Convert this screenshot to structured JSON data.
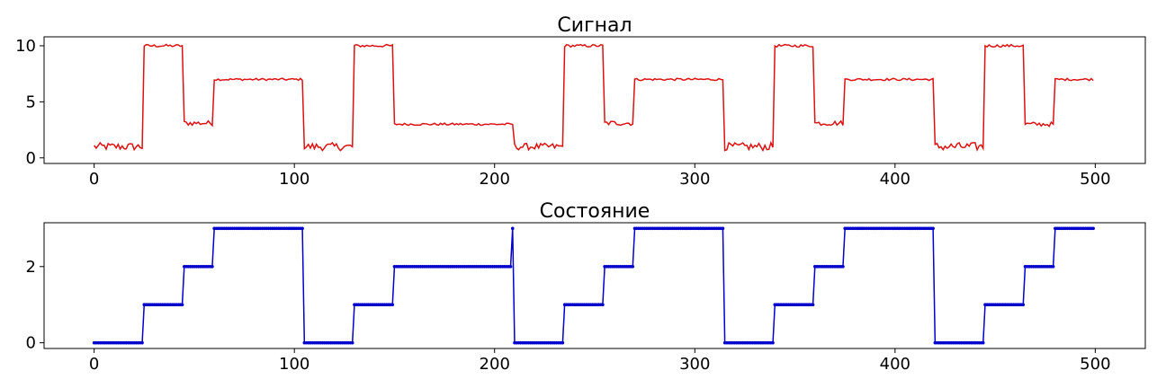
{
  "chart_data": [
    {
      "type": "line",
      "title": "Сигнал",
      "xlabel": "",
      "ylabel": "",
      "xlim": [
        -25,
        525
      ],
      "ylim": [
        -0.5,
        10.8
      ],
      "xticks": [
        0,
        100,
        200,
        300,
        400,
        500
      ],
      "yticks": [
        0,
        5,
        10
      ],
      "color": "#dd1111",
      "markers": false,
      "segments": [
        {
          "x_start": 0,
          "x_end": 24,
          "level": 1.0,
          "noise": 0.35
        },
        {
          "x_start": 25,
          "x_end": 44,
          "level": 10.0,
          "noise": 0.12
        },
        {
          "x_start": 45,
          "x_end": 59,
          "level": 3.1,
          "noise": 0.22
        },
        {
          "x_start": 60,
          "x_end": 104,
          "level": 7.0,
          "noise": 0.1
        },
        {
          "x_start": 105,
          "x_end": 129,
          "level": 1.0,
          "noise": 0.35
        },
        {
          "x_start": 130,
          "x_end": 149,
          "level": 10.0,
          "noise": 0.12
        },
        {
          "x_start": 150,
          "x_end": 209,
          "level": 3.0,
          "noise": 0.1
        },
        {
          "x_start": 210,
          "x_end": 234,
          "level": 1.0,
          "noise": 0.3
        },
        {
          "x_start": 235,
          "x_end": 254,
          "level": 10.0,
          "noise": 0.12
        },
        {
          "x_start": 255,
          "x_end": 269,
          "level": 3.1,
          "noise": 0.22
        },
        {
          "x_start": 270,
          "x_end": 314,
          "level": 7.0,
          "noise": 0.1
        },
        {
          "x_start": 315,
          "x_end": 339,
          "level": 1.0,
          "noise": 0.35
        },
        {
          "x_start": 340,
          "x_end": 359,
          "level": 10.0,
          "noise": 0.12
        },
        {
          "x_start": 360,
          "x_end": 374,
          "level": 3.1,
          "noise": 0.22
        },
        {
          "x_start": 375,
          "x_end": 419,
          "level": 7.0,
          "noise": 0.1
        },
        {
          "x_start": 420,
          "x_end": 444,
          "level": 1.0,
          "noise": 0.38
        },
        {
          "x_start": 445,
          "x_end": 464,
          "level": 10.0,
          "noise": 0.12
        },
        {
          "x_start": 465,
          "x_end": 479,
          "level": 3.0,
          "noise": 0.2
        },
        {
          "x_start": 480,
          "x_end": 499,
          "level": 7.0,
          "noise": 0.1
        }
      ]
    },
    {
      "type": "line",
      "title": "Состояние",
      "xlabel": "",
      "ylabel": "",
      "xlim": [
        -25,
        525
      ],
      "ylim": [
        -0.15,
        3.15
      ],
      "xticks": [
        0,
        100,
        200,
        300,
        400,
        500
      ],
      "yticks": [
        0,
        2
      ],
      "color": "#0000cc",
      "markers": true,
      "segments": [
        {
          "x_start": 0,
          "x_end": 24,
          "level": 0
        },
        {
          "x_start": 25,
          "x_end": 44,
          "level": 1
        },
        {
          "x_start": 45,
          "x_end": 59,
          "level": 2
        },
        {
          "x_start": 60,
          "x_end": 104,
          "level": 3
        },
        {
          "x_start": 105,
          "x_end": 129,
          "level": 0
        },
        {
          "x_start": 130,
          "x_end": 149,
          "level": 1
        },
        {
          "x_start": 150,
          "x_end": 208,
          "level": 2
        },
        {
          "x_start": 209,
          "x_end": 209,
          "level": 3
        },
        {
          "x_start": 210,
          "x_end": 234,
          "level": 0
        },
        {
          "x_start": 235,
          "x_end": 254,
          "level": 1
        },
        {
          "x_start": 255,
          "x_end": 269,
          "level": 2
        },
        {
          "x_start": 270,
          "x_end": 314,
          "level": 3
        },
        {
          "x_start": 315,
          "x_end": 339,
          "level": 0
        },
        {
          "x_start": 340,
          "x_end": 359,
          "level": 1
        },
        {
          "x_start": 360,
          "x_end": 374,
          "level": 2
        },
        {
          "x_start": 375,
          "x_end": 419,
          "level": 3
        },
        {
          "x_start": 420,
          "x_end": 444,
          "level": 0
        },
        {
          "x_start": 445,
          "x_end": 464,
          "level": 1
        },
        {
          "x_start": 465,
          "x_end": 479,
          "level": 2
        },
        {
          "x_start": 480,
          "x_end": 499,
          "level": 3
        }
      ]
    }
  ]
}
